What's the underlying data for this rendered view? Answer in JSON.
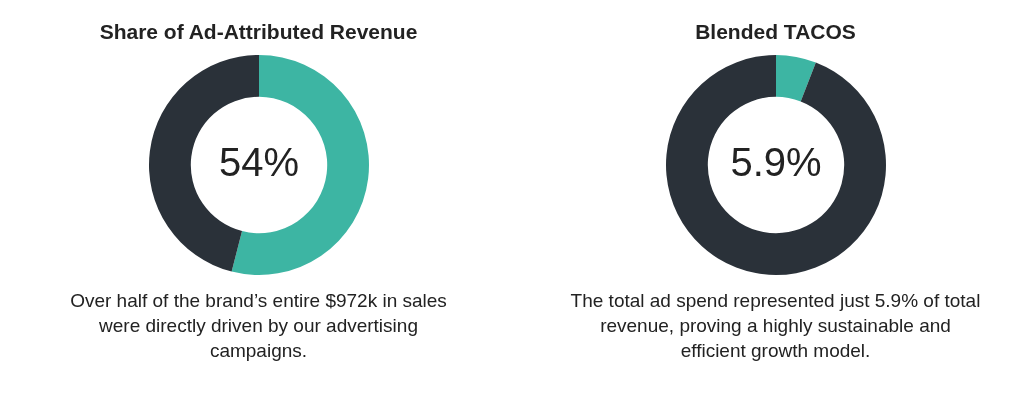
{
  "chart_data": [
    {
      "type": "donut",
      "title": "Share of Ad-Attributed Revenue",
      "categories": [
        null,
        null
      ],
      "values": [
        54,
        46
      ],
      "colors": [
        "#3db5a3",
        "#2a3139"
      ],
      "legend": false,
      "annotations": [
        "54%",
        "Over half of the brand’s entire $972k in sales were directly driven by our advertising campaigns."
      ]
    },
    {
      "type": "donut",
      "title": "Blended TACOS",
      "categories": [
        null,
        null
      ],
      "values": [
        5.9,
        94.1
      ],
      "colors": [
        "#3db5a3",
        "#2a3139"
      ],
      "legend": false,
      "annotations": [
        "5.9%",
        "The total ad spend represented just 5.9% of total revenue, proving a highly sustainable and efficient growth model."
      ]
    }
  ]
}
